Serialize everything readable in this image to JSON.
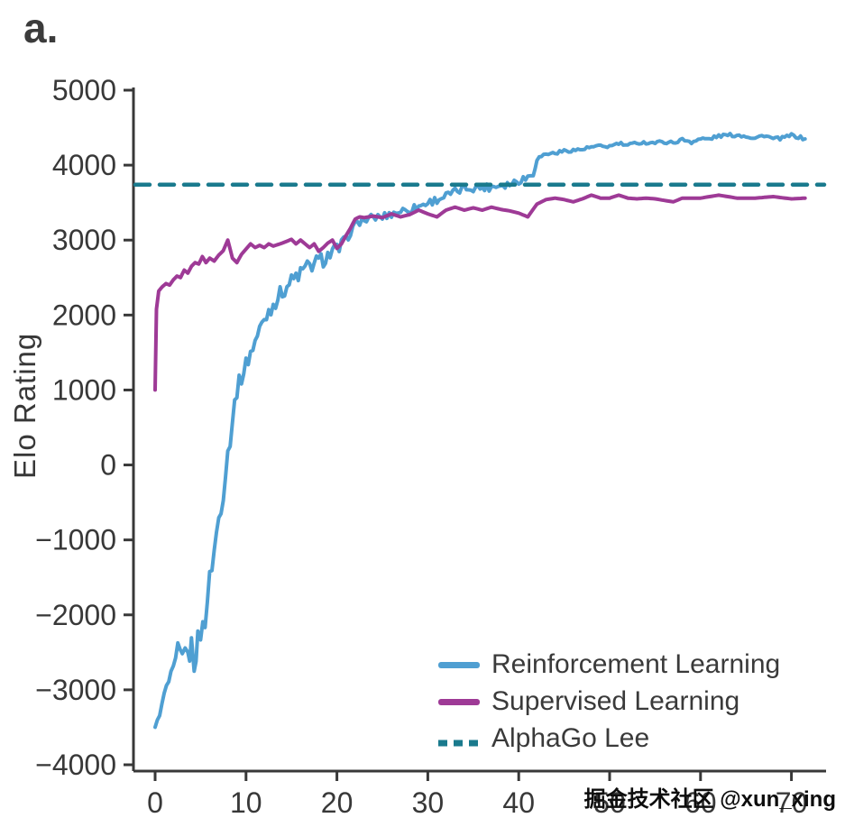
{
  "figure": {
    "panel_label": "a.",
    "watermark": "掘金技术社区 @xun_xing"
  },
  "chart_data": {
    "type": "line",
    "title": "",
    "xlabel": "",
    "ylabel": "Elo Rating",
    "xlim": [
      0,
      72
    ],
    "ylim": [
      -4000,
      5000
    ],
    "x_ticks": [
      0,
      10,
      20,
      30,
      40,
      50,
      60,
      70
    ],
    "y_ticks": [
      5000,
      4000,
      3000,
      2000,
      1000,
      0,
      -1000,
      -2000,
      -3000,
      -4000
    ],
    "grid": false,
    "legend_position": "inside-bottom-right",
    "series": [
      {
        "name": "Reinforcement Learning",
        "color": "#4f9fd2",
        "style": "solid",
        "width": 4,
        "jitter_zones": [
          {
            "until": 1,
            "amp": 20
          },
          {
            "until": 2.5,
            "amp": 70
          },
          {
            "until": 9,
            "amp": 140
          },
          {
            "until": 21,
            "amp": 110
          },
          {
            "until": 42,
            "amp": 55
          },
          {
            "until": 73,
            "amp": 22
          }
        ],
        "points": [
          [
            0,
            -3500
          ],
          [
            0.5,
            -3330
          ],
          [
            1,
            -3060
          ],
          [
            1.5,
            -2900
          ],
          [
            2,
            -2740
          ],
          [
            2.5,
            -2500
          ],
          [
            3,
            -2560
          ],
          [
            3.3,
            -2360
          ],
          [
            3.6,
            -2620
          ],
          [
            4,
            -2400
          ],
          [
            4.3,
            -2660
          ],
          [
            4.7,
            -2340
          ],
          [
            5,
            -2250
          ],
          [
            5.5,
            -2060
          ],
          [
            6,
            -1520
          ],
          [
            6.5,
            -1150
          ],
          [
            7,
            -700
          ],
          [
            7.5,
            -350
          ],
          [
            8,
            150
          ],
          [
            8.5,
            600
          ],
          [
            9,
            1000
          ],
          [
            9.5,
            1180
          ],
          [
            10,
            1340
          ],
          [
            10.5,
            1500
          ],
          [
            11,
            1650
          ],
          [
            11.5,
            1800
          ],
          [
            12,
            1950
          ],
          [
            12.5,
            2050
          ],
          [
            13,
            2150
          ],
          [
            13.5,
            2240
          ],
          [
            14,
            2310
          ],
          [
            14.5,
            2390
          ],
          [
            15,
            2450
          ],
          [
            15.5,
            2510
          ],
          [
            16,
            2560
          ],
          [
            16.5,
            2610
          ],
          [
            17,
            2650
          ],
          [
            17.5,
            2690
          ],
          [
            18,
            2710
          ],
          [
            18.5,
            2750
          ],
          [
            19,
            2790
          ],
          [
            19.5,
            2840
          ],
          [
            20,
            2860
          ],
          [
            20.5,
            2910
          ],
          [
            21,
            3000
          ],
          [
            21.5,
            3110
          ],
          [
            22,
            3200
          ],
          [
            22.5,
            3250
          ],
          [
            23,
            3260
          ],
          [
            24,
            3300
          ],
          [
            25,
            3310
          ],
          [
            26,
            3350
          ],
          [
            27,
            3390
          ],
          [
            28,
            3410
          ],
          [
            29,
            3450
          ],
          [
            30,
            3500
          ],
          [
            31,
            3540
          ],
          [
            32,
            3590
          ],
          [
            33,
            3640
          ],
          [
            34,
            3690
          ],
          [
            35,
            3700
          ],
          [
            36,
            3700
          ],
          [
            37,
            3710
          ],
          [
            38,
            3740
          ],
          [
            39,
            3750
          ],
          [
            40,
            3800
          ],
          [
            41,
            3840
          ],
          [
            41.6,
            3900
          ],
          [
            42,
            4080
          ],
          [
            42.5,
            4120
          ],
          [
            43,
            4150
          ],
          [
            44,
            4160
          ],
          [
            45,
            4190
          ],
          [
            46,
            4200
          ],
          [
            47,
            4210
          ],
          [
            48,
            4240
          ],
          [
            49,
            4250
          ],
          [
            50,
            4250
          ],
          [
            51,
            4290
          ],
          [
            52,
            4260
          ],
          [
            53,
            4300
          ],
          [
            54,
            4300
          ],
          [
            55,
            4300
          ],
          [
            56,
            4310
          ],
          [
            57,
            4300
          ],
          [
            58,
            4340
          ],
          [
            59,
            4310
          ],
          [
            60,
            4350
          ],
          [
            61,
            4350
          ],
          [
            62,
            4390
          ],
          [
            63,
            4400
          ],
          [
            64,
            4400
          ],
          [
            65,
            4390
          ],
          [
            66,
            4360
          ],
          [
            67,
            4400
          ],
          [
            68,
            4350
          ],
          [
            69,
            4360
          ],
          [
            70,
            4400
          ],
          [
            71.5,
            4350
          ]
        ]
      },
      {
        "name": "Supervised Learning",
        "color": "#9e3a96",
        "style": "solid",
        "width": 4,
        "points": [
          [
            0,
            1000
          ],
          [
            0.15,
            2080
          ],
          [
            0.4,
            2320
          ],
          [
            0.8,
            2380
          ],
          [
            1.2,
            2420
          ],
          [
            1.6,
            2400
          ],
          [
            2,
            2470
          ],
          [
            2.4,
            2520
          ],
          [
            2.8,
            2500
          ],
          [
            3.2,
            2600
          ],
          [
            3.6,
            2560
          ],
          [
            4,
            2650
          ],
          [
            4.4,
            2700
          ],
          [
            4.8,
            2680
          ],
          [
            5.2,
            2780
          ],
          [
            5.6,
            2700
          ],
          [
            6,
            2760
          ],
          [
            6.5,
            2720
          ],
          [
            7,
            2800
          ],
          [
            7.5,
            2860
          ],
          [
            8,
            3000
          ],
          [
            8.5,
            2760
          ],
          [
            9,
            2700
          ],
          [
            9.5,
            2810
          ],
          [
            10,
            2880
          ],
          [
            10.5,
            2950
          ],
          [
            11,
            2900
          ],
          [
            11.5,
            2930
          ],
          [
            12,
            2900
          ],
          [
            12.5,
            2950
          ],
          [
            13,
            2920
          ],
          [
            14,
            2960
          ],
          [
            15,
            3010
          ],
          [
            15.5,
            2950
          ],
          [
            16,
            3000
          ],
          [
            17,
            2900
          ],
          [
            17.5,
            2950
          ],
          [
            18,
            2850
          ],
          [
            18.5,
            2900
          ],
          [
            19,
            2960
          ],
          [
            19.5,
            3000
          ],
          [
            20,
            2890
          ],
          [
            20.5,
            2950
          ],
          [
            21,
            3060
          ],
          [
            21.5,
            3160
          ],
          [
            22,
            3280
          ],
          [
            22.5,
            3310
          ],
          [
            23,
            3300
          ],
          [
            24,
            3320
          ],
          [
            25,
            3300
          ],
          [
            26,
            3350
          ],
          [
            27,
            3310
          ],
          [
            28,
            3340
          ],
          [
            29,
            3400
          ],
          [
            30,
            3350
          ],
          [
            31,
            3310
          ],
          [
            32,
            3400
          ],
          [
            33,
            3440
          ],
          [
            34,
            3400
          ],
          [
            35,
            3430
          ],
          [
            36,
            3400
          ],
          [
            37,
            3440
          ],
          [
            38,
            3410
          ],
          [
            39,
            3390
          ],
          [
            40,
            3360
          ],
          [
            41,
            3310
          ],
          [
            42,
            3480
          ],
          [
            43,
            3540
          ],
          [
            44,
            3560
          ],
          [
            45,
            3540
          ],
          [
            46,
            3510
          ],
          [
            47,
            3550
          ],
          [
            48,
            3600
          ],
          [
            49,
            3560
          ],
          [
            50,
            3560
          ],
          [
            51,
            3600
          ],
          [
            52,
            3560
          ],
          [
            53,
            3550
          ],
          [
            54,
            3560
          ],
          [
            55,
            3550
          ],
          [
            57,
            3510
          ],
          [
            58,
            3560
          ],
          [
            60,
            3560
          ],
          [
            62,
            3600
          ],
          [
            64,
            3560
          ],
          [
            66,
            3560
          ],
          [
            68,
            3580
          ],
          [
            70,
            3550
          ],
          [
            71.5,
            3560
          ]
        ]
      },
      {
        "name": "AlphaGo Lee",
        "color": "#1a7a8d",
        "style": "dashed",
        "width": 4.5,
        "full_width": true,
        "points": [
          [
            0,
            3739
          ],
          [
            72,
            3739
          ]
        ]
      }
    ]
  }
}
